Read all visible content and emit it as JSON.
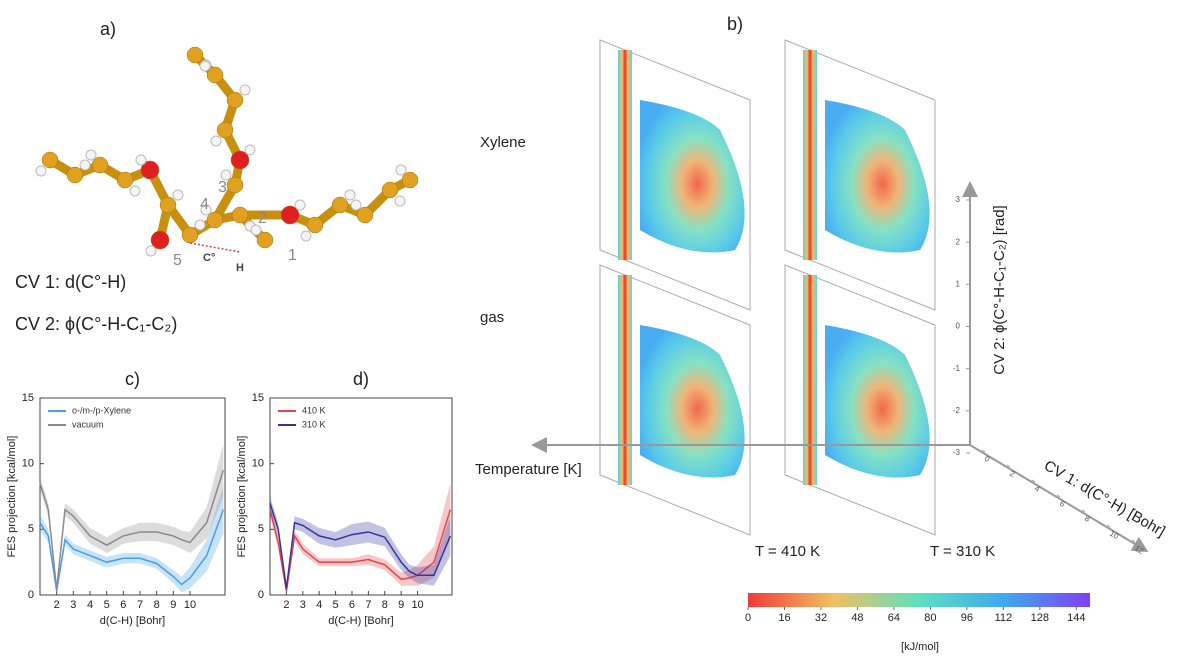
{
  "panels": {
    "a": "a)",
    "b": "b)",
    "c": "c)",
    "d": "d)"
  },
  "molecule": {
    "atom_labels": [
      "1",
      "2",
      "3",
      "4",
      "5"
    ],
    "radical_label": "C°",
    "h_label": "H",
    "cv1": "CV 1: d(C°-H)",
    "cv2": "CV 2: ϕ(C°-H-C₁-C₂)"
  },
  "fes_3d": {
    "row_labels": [
      "Xylene",
      "gas"
    ],
    "temperature_labels": [
      "T = 410 K",
      "T = 310 K"
    ],
    "axis_temperature": "Temperature [K]",
    "axis_cv1": "CV 1: d(C°-H) [Bohr]",
    "axis_cv2": "CV 2: ϕ(C°-H-C₁-C₂) [rad]",
    "cv2_lim": [
      3,
      -3
    ],
    "cv2_ticks": [
      3,
      2,
      1,
      0,
      -1,
      -2,
      -3
    ],
    "cv1_lim": [
      0,
      12
    ],
    "cv1_ticks": [
      0,
      2,
      4,
      6,
      8,
      10,
      12
    ],
    "colorbar": {
      "label": "[kJ/mol]",
      "lim": [
        0,
        150
      ],
      "ticks": [
        0,
        16,
        32,
        48,
        64,
        80,
        96,
        112,
        128,
        144
      ]
    }
  },
  "chart_data": [
    {
      "type": "line",
      "title": "c)",
      "x_label": "d(C-H) [Bohr]",
      "y_label": "FES projection [kcal/mol]",
      "xlim": [
        1,
        12.1
      ],
      "ylim": [
        0,
        15
      ],
      "xticks": [
        2,
        3,
        4,
        5,
        6,
        7,
        8,
        9,
        10
      ],
      "yticks": [
        0,
        5,
        10,
        15
      ],
      "x": [
        1,
        1.5,
        2,
        2.5,
        3,
        4,
        5,
        6,
        7,
        8,
        9,
        9.5,
        10,
        11,
        12
      ],
      "series": [
        {
          "name": "o-/m-/p-Xylene",
          "color": "#4a9fe0",
          "values": [
            5.5,
            4.5,
            0.3,
            4.2,
            3.5,
            3,
            2.5,
            2.8,
            2.8,
            2.4,
            1.4,
            0.8,
            1.3,
            3,
            6.5
          ],
          "error": [
            0.6,
            0.5,
            0.3,
            0.4,
            0.4,
            0.4,
            0.4,
            0.4,
            0.4,
            0.4,
            0.5,
            0.6,
            0.8,
            1.2,
            1.8
          ]
        },
        {
          "name": "vacuum",
          "color": "#8a8a8a",
          "values": [
            8.5,
            6.5,
            0.4,
            6.5,
            6,
            4.5,
            3.8,
            4.5,
            4.8,
            4.8,
            4.5,
            4.2,
            4,
            5.5,
            9.5
          ],
          "error": [
            0.5,
            0.5,
            0.3,
            0.5,
            0.5,
            0.6,
            0.6,
            0.6,
            0.7,
            0.7,
            0.7,
            0.7,
            0.8,
            1.2,
            2
          ]
        }
      ]
    },
    {
      "type": "line",
      "title": "d)",
      "x_label": "d(C-H) [Bohr]",
      "y_label": "FES projection [kcal/mol]",
      "xlim": [
        1,
        12.1
      ],
      "ylim": [
        0,
        15
      ],
      "xticks": [
        2,
        3,
        4,
        5,
        6,
        7,
        8,
        9,
        10
      ],
      "yticks": [
        0,
        5,
        10,
        15
      ],
      "x": [
        1,
        1.5,
        2,
        2.5,
        3,
        4,
        5,
        6,
        7,
        8,
        9,
        9.5,
        10,
        11,
        12
      ],
      "series": [
        {
          "name": "410 K",
          "color": "#e0474c",
          "values": [
            6.5,
            4,
            0.3,
            4.5,
            3.5,
            2.5,
            2.5,
            2.5,
            2.7,
            2.3,
            1.2,
            1.3,
            1.5,
            2.5,
            6.5
          ],
          "error": [
            0.5,
            0.4,
            0.3,
            0.4,
            0.4,
            0.3,
            0.3,
            0.3,
            0.4,
            0.4,
            0.5,
            0.6,
            0.8,
            1.2,
            2
          ]
        },
        {
          "name": "310 K",
          "color": "#3535a0",
          "values": [
            7,
            5,
            0.5,
            5.5,
            5.3,
            4.5,
            4.2,
            4.6,
            4.8,
            4.4,
            2.5,
            1.8,
            1.5,
            1.5,
            4.5
          ],
          "error": [
            0.5,
            0.5,
            0.3,
            0.5,
            0.5,
            0.6,
            0.6,
            0.8,
            0.8,
            0.7,
            0.6,
            0.5,
            0.6,
            0.8,
            1.5
          ]
        }
      ]
    }
  ]
}
